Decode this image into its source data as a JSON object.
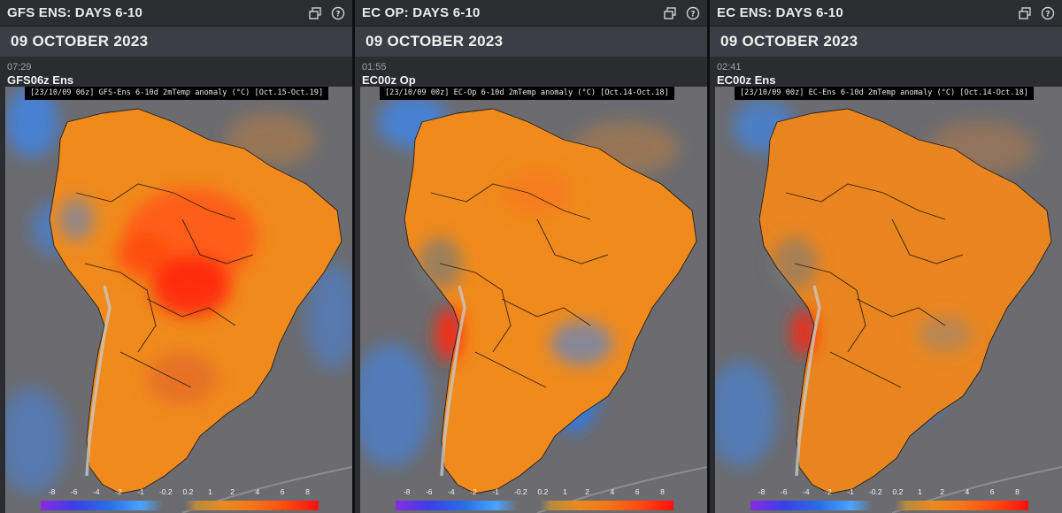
{
  "panels": [
    {
      "title": "GFS ENS: DAYS 6-10",
      "date": "09 OCTOBER 2023",
      "time": "07:29",
      "model": "GFS06z Ens",
      "caption": "[23/10/09 06z] GFS-Ens 6-10d 2mTemp anomaly (°C) [Oct.15-Oct.19]",
      "icons": [
        "popout-icon",
        "help-icon"
      ]
    },
    {
      "title": "EC OP: DAYS 6-10",
      "date": "09 OCTOBER 2023",
      "time": "01:55",
      "model": "EC00z Op",
      "caption": "[23/10/09 00z] EC-Op 6-10d 2mTemp anomaly (°C) [Oct.14-Oct.18]",
      "icons": [
        "popout-icon",
        "help-icon"
      ]
    },
    {
      "title": "EC ENS: DAYS 6-10",
      "date": "09 OCTOBER 2023",
      "time": "02:41",
      "model": "EC00z Ens",
      "caption": "[23/10/09 00z] EC-Ens 6-10d 2mTemp anomaly (°C) [Oct.14-Oct.18]",
      "icons": [
        "popout-icon",
        "help-icon"
      ]
    }
  ],
  "scale": {
    "ticks": [
      "-8",
      "-6",
      "-4",
      "-2",
      "-1",
      "-0.2",
      "0.2",
      "1",
      "2",
      "4",
      "6",
      "8"
    ]
  },
  "colors": {
    "header_bg": "#2b2d31",
    "date_band_bg": "#3b3e44",
    "ocean_gray": "#6c6c70",
    "warm_orange": "#f08a1c",
    "hot_red": "#ff3b10",
    "cool_blue": "#3f86e8"
  }
}
